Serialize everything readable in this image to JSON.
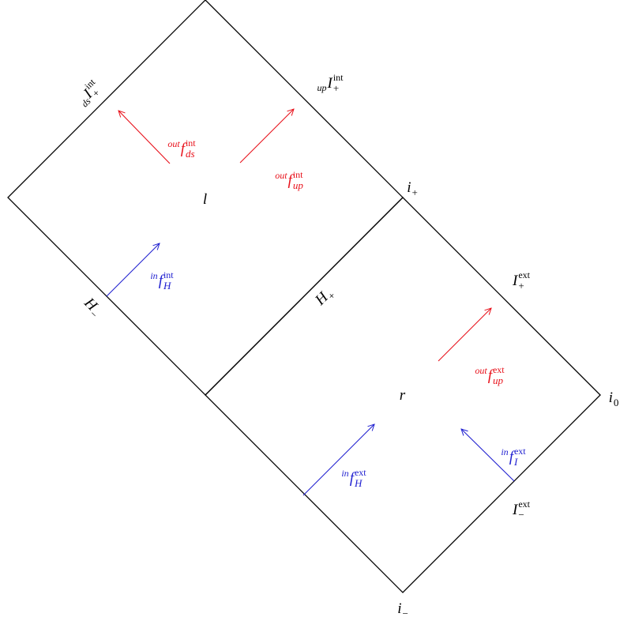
{
  "labels": [
    {
      "presub": "ds",
      "base": "I",
      "sub": "+",
      "sup": "int"
    },
    {
      "presub": "up",
      "base": "I",
      "sub": "+",
      "sup": "int"
    },
    {
      "base": "i",
      "sub": "+"
    },
    {
      "base": "l"
    },
    {
      "presup": "out",
      "base": "f",
      "sub": "ds",
      "sup": "int",
      "color": "#e8101a"
    },
    {
      "presup": "out",
      "base": "f",
      "sub": "up",
      "sup": "int",
      "color": "#e8101a"
    },
    {
      "presup": "in",
      "base": "f",
      "sub": "H",
      "sup": "int",
      "color": "#2020d0"
    },
    {
      "base": "H",
      "sub": "−"
    },
    {
      "base": "H",
      "sub": "+"
    },
    {
      "base": "I",
      "sub": "+",
      "sup": "ext"
    },
    {
      "presup": "out",
      "base": "f",
      "sub": "up",
      "sup": "ext",
      "color": "#e8101a"
    },
    {
      "base": "r"
    },
    {
      "base": "i",
      "sub": "0"
    },
    {
      "presup": "in",
      "base": "f",
      "sub": "I",
      "sup": "ext",
      "color": "#2020d0"
    },
    {
      "presup": "in",
      "base": "f",
      "sub": "H",
      "sup": "ext",
      "color": "#2020d0"
    },
    {
      "base": "I",
      "sub": "−",
      "sup": "ext"
    },
    {
      "base": "i",
      "sub": "−"
    }
  ]
}
